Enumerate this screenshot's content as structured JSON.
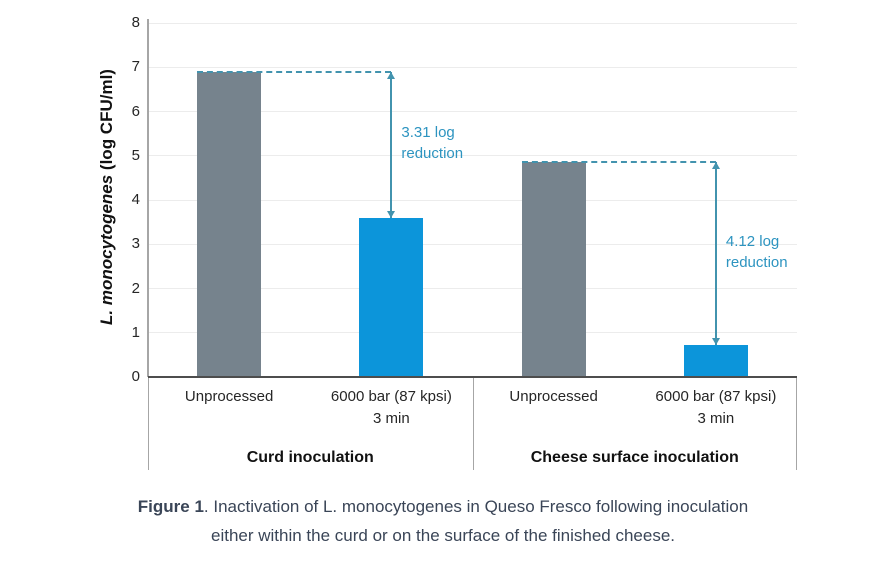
{
  "caption": {
    "prefix": "Figure 1",
    "line1_rest": ". Inactivation of L. monocytogenes in Queso Fresco following inoculation",
    "line2": "either within the curd or on the surface of the finished cheese."
  },
  "chart_data": {
    "type": "bar",
    "ylabel_italic": "L. monocytogenes",
    "ylabel_rest": " (log CFU/ml)",
    "ylim": [
      0,
      8
    ],
    "yticks": [
      0,
      1,
      2,
      3,
      4,
      5,
      6,
      7,
      8
    ],
    "grid": true,
    "legend": "none",
    "groups": [
      {
        "label": "Curd inoculation",
        "bars": [
          {
            "label_lines": [
              "Unprocessed"
            ],
            "value": 6.9,
            "color_key": "gray"
          },
          {
            "label_lines": [
              "6000 bar (87 kpsi)",
              "3 min"
            ],
            "value": 3.6,
            "color_key": "blue"
          }
        ],
        "reduction": {
          "lines": [
            "3.31 log",
            "reduction"
          ],
          "value": 3.31
        }
      },
      {
        "label": "Cheese surface inoculation",
        "bars": [
          {
            "label_lines": [
              "Unprocessed"
            ],
            "value": 4.85,
            "color_key": "gray"
          },
          {
            "label_lines": [
              "6000 bar (87 kpsi)",
              "3 min"
            ],
            "value": 0.73,
            "color_key": "blue"
          }
        ],
        "reduction": {
          "lines": [
            "4.12 log",
            "reduction"
          ],
          "value": 4.12
        }
      }
    ],
    "colors": {
      "gray": "#76838d",
      "blue": "#0c95da",
      "annotation": "#2d94c0",
      "dash": "#4293ae",
      "grid": "#ececec",
      "axis_y": "#a6a6a6",
      "axis_x": "#4d4d4d",
      "box_line": "#a6a6a6",
      "tick_text": "#262626",
      "caption": "#3a4557"
    }
  }
}
